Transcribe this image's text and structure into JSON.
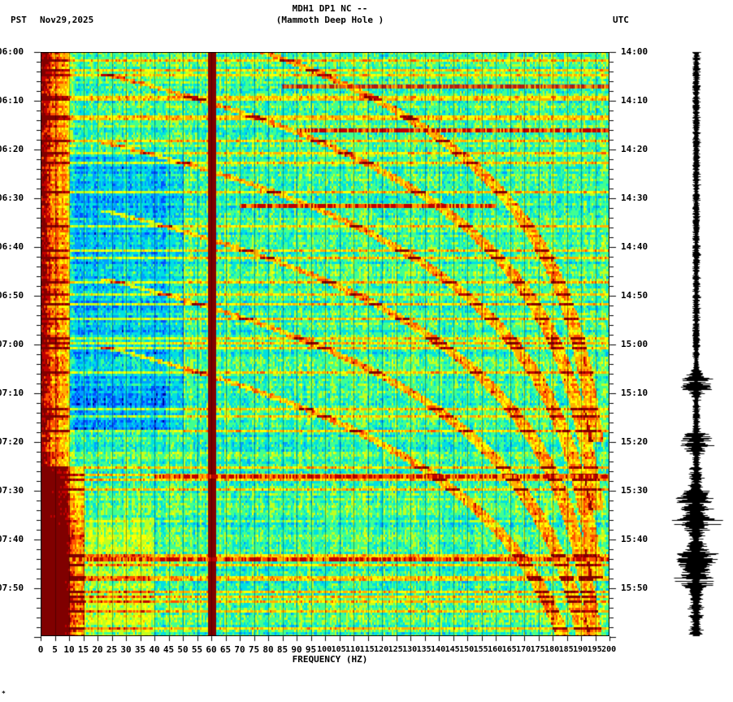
{
  "header": {
    "title_line1": "MDH1 DP1 NC --",
    "title_line2": "(Mammoth Deep Hole )",
    "left_timezone": "PST",
    "date": "Nov29,2025",
    "right_timezone": "UTC"
  },
  "footer": {
    "corner_mark": "*"
  },
  "chart_data": {
    "type": "heatmap",
    "title": "MDH1 DP1 NC -- (Mammoth Deep Hole )",
    "xlabel": "FREQUENCY (HZ)",
    "ylabel_left": "PST",
    "ylabel_right": "UTC",
    "xlim": [
      0,
      200
    ],
    "x_ticks": [
      "0",
      "5",
      "10",
      "15",
      "20",
      "25",
      "30",
      "35",
      "40",
      "45",
      "50",
      "55",
      "60",
      "65",
      "70",
      "75",
      "80",
      "85",
      "90",
      "95",
      "100",
      "105",
      "110",
      "115",
      "120",
      "125",
      "130",
      "135",
      "140",
      "145",
      "150",
      "155",
      "160",
      "165",
      "170",
      "175",
      "180",
      "185",
      "190",
      "195",
      "200"
    ],
    "y_ticks_left": [
      "06:00",
      "06:10",
      "06:20",
      "06:30",
      "06:40",
      "06:50",
      "07:00",
      "07:10",
      "07:20",
      "07:30",
      "07:40",
      "07:50"
    ],
    "y_ticks_right": [
      "14:00",
      "14:10",
      "14:20",
      "14:30",
      "14:40",
      "14:50",
      "15:00",
      "15:10",
      "15:20",
      "15:30",
      "15:40",
      "15:50"
    ],
    "time_range_minutes": [
      0,
      120
    ],
    "colormap": [
      "#0000a0",
      "#0050ff",
      "#00a0ff",
      "#00e0e0",
      "#40ff90",
      "#c0ff20",
      "#ffff00",
      "#ffb000",
      "#ff5000",
      "#c00000",
      "#800000"
    ],
    "features": [
      {
        "name": "low-frequency-energy",
        "freq_range": [
          0,
          10
        ],
        "time_range": [
          0,
          120
        ],
        "intensity": "high"
      },
      {
        "name": "60hz-powerline",
        "freq": 60,
        "time_range": [
          0,
          120
        ],
        "intensity": "very-high"
      },
      {
        "name": "noise-band-0608",
        "freq_range": [
          85,
          200
        ],
        "time_minute": 7,
        "intensity": "high"
      },
      {
        "name": "noise-band-0616",
        "freq_range": [
          90,
          200
        ],
        "time_minute": 16,
        "intensity": "high"
      },
      {
        "name": "noise-band-0631",
        "freq_range": [
          70,
          160
        ],
        "time_minute": 31.5,
        "intensity": "high"
      },
      {
        "name": "noise-band-0727",
        "freq_range": [
          40,
          200
        ],
        "time_minute": 87,
        "intensity": "high"
      },
      {
        "name": "noise-band-0744",
        "freq_range": [
          10,
          200
        ],
        "time_minute": 104,
        "intensity": "high"
      },
      {
        "name": "quiet-band",
        "freq_range": [
          10,
          45
        ],
        "time_range": [
          68,
          78
        ],
        "intensity": "low"
      }
    ],
    "grid": "vertical lines every 5 Hz",
    "legend": "none"
  },
  "seismogram": {
    "events_minutes": [
      68,
      80,
      92,
      96,
      104,
      108
    ]
  }
}
